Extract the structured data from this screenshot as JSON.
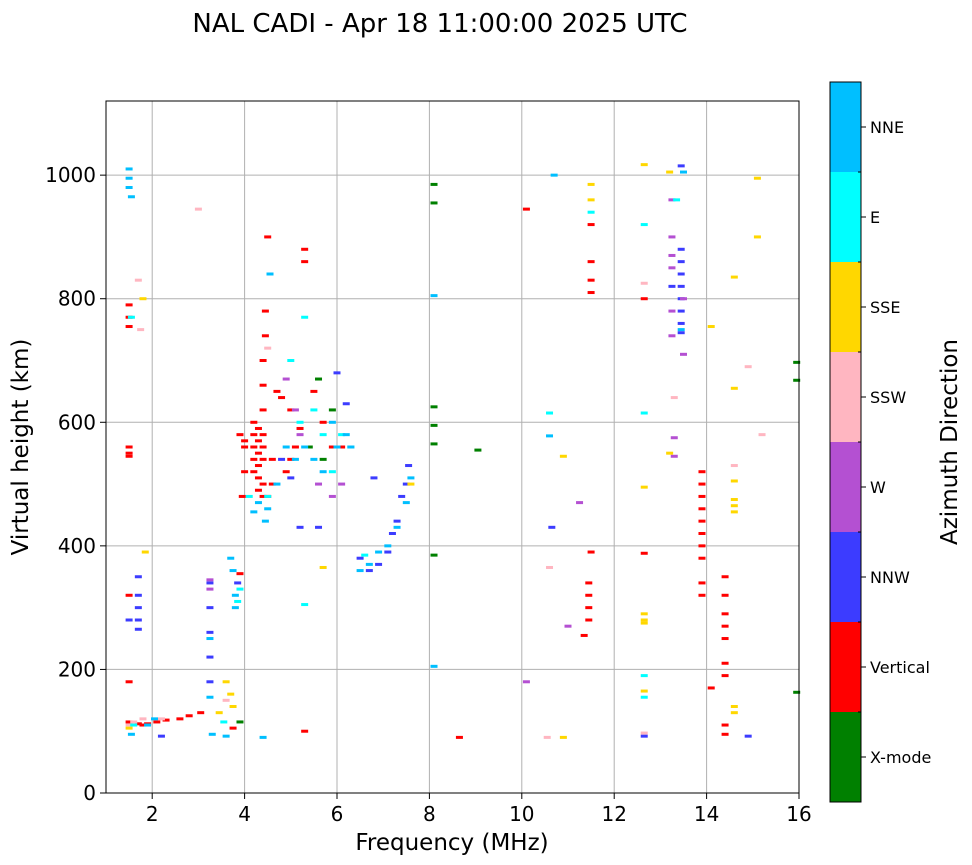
{
  "chart_data": {
    "type": "scatter",
    "title": "NAL CADI - Apr 18 11:00:00 2025 UTC",
    "xlabel": "Frequency (MHz)",
    "ylabel": "Virtual height (km)",
    "xlim": [
      1,
      16
    ],
    "ylim": [
      0,
      1120
    ],
    "xticks": [
      2,
      4,
      6,
      8,
      10,
      12,
      14,
      16
    ],
    "xtick_labels": [
      "2",
      "4",
      "6",
      "8",
      "10",
      "12",
      "14",
      "16"
    ],
    "yticks": [
      0,
      200,
      400,
      600,
      800,
      1000
    ],
    "ytick_labels": [
      "0",
      "200",
      "400",
      "600",
      "800",
      "1000"
    ],
    "grid": true,
    "colorbar": {
      "title": "Azimuth Direction",
      "categories": [
        {
          "name": "X-mode",
          "color": "#008000"
        },
        {
          "name": "Vertical",
          "color": "#ff0000"
        },
        {
          "name": "NNW",
          "color": "#3c3cff"
        },
        {
          "name": "W",
          "color": "#b450d2"
        },
        {
          "name": "SSW",
          "color": "#ffb6c1"
        },
        {
          "name": "SSE",
          "color": "#ffd700"
        },
        {
          "name": "E",
          "color": "#00ffff"
        },
        {
          "name": "NNE",
          "color": "#00bfff"
        }
      ]
    },
    "series": [
      {
        "name": "Vertical",
        "color": "#ff0000",
        "points": [
          [
            1.5,
            320
          ],
          [
            1.5,
            560
          ],
          [
            1.5,
            550
          ],
          [
            1.5,
            545
          ],
          [
            1.5,
            790
          ],
          [
            1.5,
            770
          ],
          [
            1.5,
            755
          ],
          [
            1.5,
            180
          ],
          [
            1.5,
            115
          ],
          [
            1.7,
            112
          ],
          [
            1.8,
            110
          ],
          [
            1.9,
            112
          ],
          [
            2.1,
            115
          ],
          [
            2.3,
            118
          ],
          [
            2.6,
            120
          ],
          [
            2.8,
            125
          ],
          [
            3.05,
            130
          ],
          [
            3.75,
            105
          ],
          [
            3.95,
            480
          ],
          [
            3.9,
            355
          ],
          [
            3.9,
            580
          ],
          [
            4.0,
            570
          ],
          [
            4.0,
            560
          ],
          [
            4.0,
            520
          ],
          [
            4.2,
            600
          ],
          [
            4.2,
            580
          ],
          [
            4.2,
            560
          ],
          [
            4.2,
            540
          ],
          [
            4.2,
            520
          ],
          [
            4.3,
            590
          ],
          [
            4.3,
            570
          ],
          [
            4.3,
            550
          ],
          [
            4.3,
            530
          ],
          [
            4.3,
            510
          ],
          [
            4.3,
            490
          ],
          [
            4.4,
            580
          ],
          [
            4.4,
            560
          ],
          [
            4.4,
            540
          ],
          [
            4.4,
            500
          ],
          [
            4.4,
            480
          ],
          [
            4.4,
            620
          ],
          [
            4.4,
            660
          ],
          [
            4.4,
            700
          ],
          [
            4.45,
            740
          ],
          [
            4.45,
            780
          ],
          [
            4.5,
            900
          ],
          [
            4.6,
            540
          ],
          [
            4.6,
            500
          ],
          [
            4.5,
            480
          ],
          [
            4.7,
            650
          ],
          [
            4.8,
            640
          ],
          [
            5.0,
            620
          ],
          [
            5.2,
            590
          ],
          [
            5.3,
            880
          ],
          [
            5.3,
            860
          ],
          [
            5.3,
            100
          ],
          [
            5.5,
            650
          ],
          [
            5.7,
            600
          ],
          [
            5.9,
            560
          ],
          [
            6.1,
            560
          ],
          [
            5.0,
            540
          ],
          [
            5.1,
            560
          ],
          [
            4.9,
            520
          ],
          [
            8.65,
            90
          ],
          [
            10.1,
            945
          ],
          [
            11.5,
            390
          ],
          [
            11.45,
            340
          ],
          [
            11.45,
            320
          ],
          [
            11.45,
            300
          ],
          [
            11.45,
            280
          ],
          [
            11.5,
            860
          ],
          [
            11.5,
            830
          ],
          [
            11.5,
            810
          ],
          [
            11.5,
            920
          ],
          [
            11.35,
            255
          ],
          [
            12.65,
            388
          ],
          [
            12.65,
            800
          ],
          [
            13.9,
            520
          ],
          [
            13.9,
            500
          ],
          [
            13.9,
            480
          ],
          [
            13.9,
            460
          ],
          [
            13.9,
            440
          ],
          [
            13.9,
            420
          ],
          [
            13.9,
            400
          ],
          [
            13.9,
            380
          ],
          [
            13.9,
            340
          ],
          [
            13.9,
            320
          ],
          [
            14.1,
            170
          ],
          [
            14.4,
            350
          ],
          [
            14.4,
            320
          ],
          [
            14.4,
            290
          ],
          [
            14.4,
            270
          ],
          [
            14.4,
            250
          ],
          [
            14.4,
            210
          ],
          [
            14.4,
            190
          ],
          [
            14.4,
            110
          ],
          [
            14.4,
            95
          ]
        ]
      },
      {
        "name": "X-mode",
        "color": "#008000",
        "points": [
          [
            8.1,
            985
          ],
          [
            8.1,
            955
          ],
          [
            8.1,
            625
          ],
          [
            8.1,
            595
          ],
          [
            8.1,
            565
          ],
          [
            8.1,
            385
          ],
          [
            9.05,
            555
          ],
          [
            15.95,
            697
          ],
          [
            15.95,
            668
          ],
          [
            15.95,
            163
          ],
          [
            5.6,
            670
          ],
          [
            5.9,
            620
          ],
          [
            3.9,
            115
          ],
          [
            5.4,
            560
          ],
          [
            5.7,
            540
          ]
        ]
      },
      {
        "name": "NNW",
        "color": "#3c3cff",
        "points": [
          [
            1.7,
            350
          ],
          [
            1.7,
            320
          ],
          [
            1.7,
            300
          ],
          [
            1.7,
            280
          ],
          [
            1.7,
            265
          ],
          [
            1.5,
            280
          ],
          [
            3.25,
            340
          ],
          [
            3.25,
            300
          ],
          [
            3.25,
            260
          ],
          [
            3.25,
            220
          ],
          [
            3.25,
            180
          ],
          [
            3.85,
            340
          ],
          [
            4.8,
            540
          ],
          [
            5.0,
            510
          ],
          [
            5.2,
            430
          ],
          [
            5.6,
            430
          ],
          [
            6.0,
            680
          ],
          [
            6.2,
            630
          ],
          [
            6.5,
            380
          ],
          [
            6.7,
            360
          ],
          [
            6.9,
            370
          ],
          [
            7.1,
            390
          ],
          [
            7.2,
            420
          ],
          [
            7.3,
            440
          ],
          [
            7.4,
            480
          ],
          [
            7.5,
            500
          ],
          [
            7.55,
            530
          ],
          [
            6.8,
            510
          ],
          [
            2.2,
            92
          ],
          [
            12.65,
            92
          ],
          [
            14.9,
            92
          ],
          [
            10.65,
            430
          ],
          [
            13.45,
            1015
          ],
          [
            13.45,
            880
          ],
          [
            13.45,
            860
          ],
          [
            13.45,
            840
          ],
          [
            13.45,
            820
          ],
          [
            13.45,
            800
          ],
          [
            13.45,
            780
          ],
          [
            13.45,
            760
          ],
          [
            13.45,
            745
          ],
          [
            13.25,
            820
          ]
        ]
      },
      {
        "name": "W",
        "color": "#b450d2",
        "points": [
          [
            3.25,
            345
          ],
          [
            3.25,
            330
          ],
          [
            4.9,
            670
          ],
          [
            5.1,
            620
          ],
          [
            5.2,
            580
          ],
          [
            5.6,
            500
          ],
          [
            5.9,
            480
          ],
          [
            6.1,
            500
          ],
          [
            11.25,
            470
          ],
          [
            11.0,
            270
          ],
          [
            10.1,
            180
          ],
          [
            13.25,
            960
          ],
          [
            13.25,
            900
          ],
          [
            13.25,
            870
          ],
          [
            13.25,
            850
          ],
          [
            13.25,
            780
          ],
          [
            13.25,
            740
          ],
          [
            13.3,
            575
          ],
          [
            13.3,
            545
          ],
          [
            13.5,
            710
          ],
          [
            13.5,
            800
          ]
        ]
      },
      {
        "name": "SSW",
        "color": "#ffb6c1",
        "points": [
          [
            1.5,
            110
          ],
          [
            1.6,
            115
          ],
          [
            1.7,
            830
          ],
          [
            1.75,
            750
          ],
          [
            1.8,
            120
          ],
          [
            2.2,
            120
          ],
          [
            3.0,
            945
          ],
          [
            3.6,
            150
          ],
          [
            4.5,
            720
          ],
          [
            10.55,
            90
          ],
          [
            10.6,
            365
          ],
          [
            12.65,
            825
          ],
          [
            12.65,
            97
          ],
          [
            14.6,
            530
          ],
          [
            14.9,
            690
          ],
          [
            15.2,
            580
          ],
          [
            13.3,
            640
          ]
        ]
      },
      {
        "name": "SSE",
        "color": "#ffd700",
        "points": [
          [
            1.5,
            105
          ],
          [
            1.8,
            800
          ],
          [
            1.85,
            390
          ],
          [
            3.45,
            130
          ],
          [
            3.6,
            180
          ],
          [
            3.7,
            160
          ],
          [
            3.75,
            140
          ],
          [
            5.7,
            365
          ],
          [
            7.6,
            500
          ],
          [
            10.9,
            90
          ],
          [
            10.9,
            545
          ],
          [
            11.5,
            985
          ],
          [
            11.5,
            960
          ],
          [
            12.65,
            1017
          ],
          [
            12.65,
            290
          ],
          [
            12.65,
            280
          ],
          [
            12.65,
            275
          ],
          [
            12.65,
            165
          ],
          [
            12.65,
            495
          ],
          [
            13.2,
            1005
          ],
          [
            13.2,
            550
          ],
          [
            14.1,
            755
          ],
          [
            14.6,
            835
          ],
          [
            14.6,
            655
          ],
          [
            14.6,
            505
          ],
          [
            14.6,
            475
          ],
          [
            14.6,
            465
          ],
          [
            14.6,
            455
          ],
          [
            14.6,
            140
          ],
          [
            14.6,
            130
          ],
          [
            15.1,
            995
          ],
          [
            15.1,
            900
          ]
        ]
      },
      {
        "name": "E",
        "color": "#00ffff",
        "points": [
          [
            1.55,
            770
          ],
          [
            1.6,
            110
          ],
          [
            3.55,
            115
          ],
          [
            3.85,
            310
          ],
          [
            3.9,
            330
          ],
          [
            4.1,
            480
          ],
          [
            4.5,
            480
          ],
          [
            5.0,
            700
          ],
          [
            5.2,
            600
          ],
          [
            5.3,
            770
          ],
          [
            5.3,
            305
          ],
          [
            5.5,
            620
          ],
          [
            5.7,
            580
          ],
          [
            5.9,
            520
          ],
          [
            6.1,
            580
          ],
          [
            6.3,
            560
          ],
          [
            6.6,
            385
          ],
          [
            10.6,
            615
          ],
          [
            11.5,
            940
          ],
          [
            12.65,
            920
          ],
          [
            12.65,
            615
          ],
          [
            12.65,
            190
          ],
          [
            12.65,
            155
          ],
          [
            13.35,
            960
          ]
        ]
      },
      {
        "name": "NNE",
        "color": "#00bfff",
        "points": [
          [
            1.5,
            1010
          ],
          [
            1.5,
            995
          ],
          [
            1.5,
            980
          ],
          [
            1.55,
            965
          ],
          [
            1.55,
            95
          ],
          [
            1.9,
            110
          ],
          [
            2.05,
            120
          ],
          [
            3.25,
            250
          ],
          [
            3.25,
            155
          ],
          [
            3.3,
            95
          ],
          [
            3.6,
            92
          ],
          [
            3.7,
            380
          ],
          [
            3.75,
            360
          ],
          [
            3.8,
            320
          ],
          [
            3.8,
            300
          ],
          [
            4.2,
            455
          ],
          [
            4.3,
            470
          ],
          [
            4.45,
            440
          ],
          [
            4.5,
            460
          ],
          [
            4.55,
            840
          ],
          [
            4.7,
            500
          ],
          [
            4.9,
            560
          ],
          [
            5.1,
            540
          ],
          [
            5.3,
            560
          ],
          [
            5.5,
            540
          ],
          [
            5.7,
            520
          ],
          [
            5.9,
            600
          ],
          [
            6.0,
            560
          ],
          [
            6.2,
            580
          ],
          [
            6.3,
            560
          ],
          [
            6.5,
            360
          ],
          [
            6.7,
            370
          ],
          [
            6.9,
            390
          ],
          [
            7.1,
            400
          ],
          [
            7.3,
            430
          ],
          [
            7.5,
            470
          ],
          [
            7.6,
            510
          ],
          [
            4.4,
            90
          ],
          [
            8.1,
            805
          ],
          [
            8.1,
            205
          ],
          [
            10.7,
            1000
          ],
          [
            10.6,
            578
          ],
          [
            13.45,
            750
          ],
          [
            13.5,
            1005
          ]
        ]
      }
    ]
  }
}
